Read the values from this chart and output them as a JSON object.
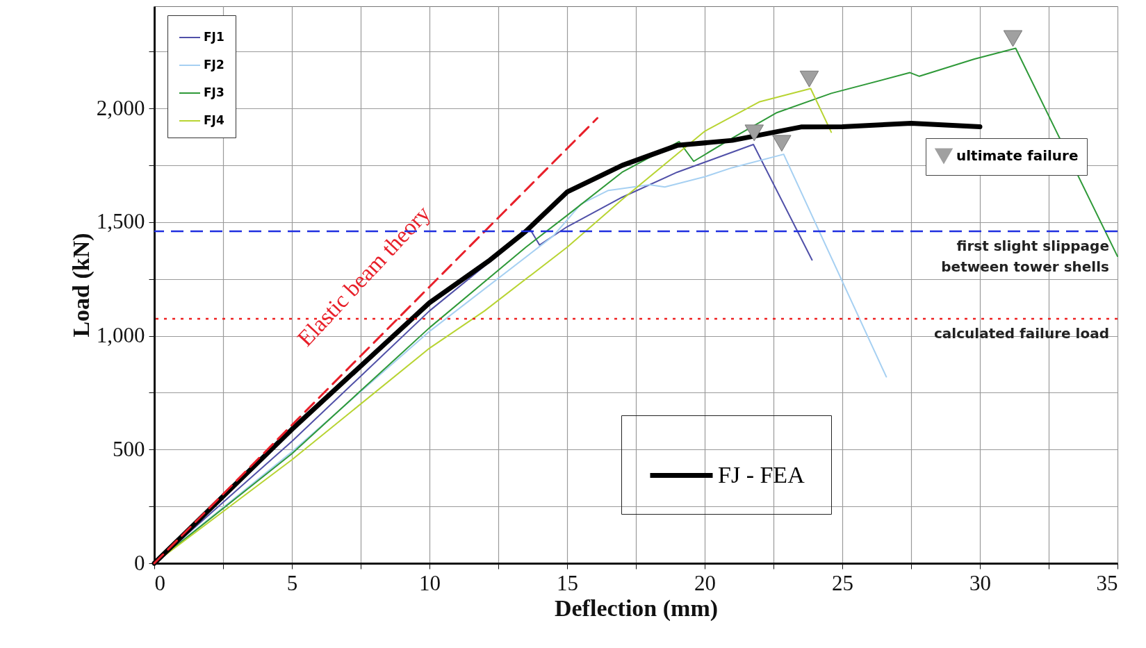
{
  "chart_data": {
    "type": "line",
    "xlabel": "Deflection (mm)",
    "ylabel": "Load (kN)",
    "xlim": [
      0,
      35
    ],
    "ylim": [
      0,
      2450
    ],
    "xticks": [
      0,
      {
        "value": 2.5,
        "label": null
      },
      5,
      {
        "value": 7.5,
        "label": null
      },
      10,
      {
        "value": 12.5,
        "label": null
      },
      15,
      {
        "value": 17.5,
        "label": null
      },
      20,
      {
        "value": 22.5,
        "label": null
      },
      25,
      {
        "value": 27.5,
        "label": null
      },
      30,
      {
        "value": 32.5,
        "label": null
      },
      35
    ],
    "yticks": [
      0,
      {
        "value": 250,
        "label": null
      },
      500,
      {
        "value": 750,
        "label": null
      },
      {
        "value": 1000,
        "label": "1,000"
      },
      {
        "value": 1250,
        "label": null
      },
      {
        "value": 1500,
        "label": "1,500"
      },
      {
        "value": 1750,
        "label": null
      },
      {
        "value": 2000,
        "label": "2,000"
      },
      {
        "value": 2250,
        "label": null
      }
    ],
    "grid": true,
    "legend": "top left",
    "series": [
      {
        "name": "FJ1",
        "color": "#5050a8",
        "x": [
          0,
          5,
          10,
          13.65,
          14,
          15,
          17,
          19,
          21.77,
          23.9
        ],
        "values": [
          0,
          536,
          1110,
          1470,
          1400,
          1480,
          1610,
          1720,
          1842,
          1334
        ]
      },
      {
        "name": "FJ2",
        "color": "#a6d0f2",
        "x": [
          0,
          5,
          10,
          14.5,
          15.5,
          16.5,
          18,
          18.55,
          20,
          21,
          22.87,
          26.6
        ],
        "values": [
          0,
          490,
          1020,
          1440,
          1580,
          1640,
          1665,
          1655,
          1700,
          1740,
          1799,
          820
        ]
      },
      {
        "name": "FJ3",
        "color": "#2e9938",
        "x": [
          0,
          5,
          10,
          13.5,
          15,
          17,
          19.07,
          19.6,
          21,
          22.6,
          24.6,
          27.46,
          27.8,
          29.8,
          31.3,
          35
        ],
        "values": [
          0,
          482,
          1036,
          1390,
          1530,
          1720,
          1855,
          1768,
          1870,
          1981,
          2067,
          2158,
          2142,
          2218,
          2265,
          1350
        ]
      },
      {
        "name": "FJ4",
        "color": "#b8d432",
        "x": [
          0,
          5,
          10,
          12,
          15,
          17,
          19,
          20,
          22,
          23.85,
          24.6
        ],
        "values": [
          0,
          455,
          946,
          1110,
          1390,
          1600,
          1800,
          1900,
          2030,
          2088,
          1896
        ]
      },
      {
        "name": "FJ - FEA",
        "color": "#000000",
        "x": [
          0,
          5,
          10,
          12.2,
          13.5,
          15,
          17,
          19,
          21,
          23.5,
          25,
          27.5,
          30
        ],
        "values": [
          0,
          589,
          1146,
          1334,
          1460,
          1633,
          1750,
          1838,
          1860,
          1919,
          1920,
          1935,
          1920
        ]
      },
      {
        "name": "Elastic beam theory",
        "color": "#e8202a",
        "line_style": "dashed",
        "x": [
          0,
          16.1
        ],
        "values": [
          0,
          1958
        ]
      },
      {
        "name": "ultimate failure",
        "type": "scatter",
        "marker": "triangle",
        "color": "#a0a0a0",
        "x": [
          21.8,
          22.8,
          23.8,
          31.2
        ],
        "values": [
          1893,
          1847,
          2130,
          2308
        ]
      }
    ],
    "ref_lines": [
      {
        "axis": "y",
        "value": 1460,
        "label": "first slight slippage\nbetween tower shells",
        "color": "#1f2fe0",
        "line_style": "dashed"
      },
      {
        "axis": "y",
        "value": 1075,
        "label": "calculated failure load",
        "color": "#ee2020",
        "line_style": "dotted"
      }
    ]
  }
}
